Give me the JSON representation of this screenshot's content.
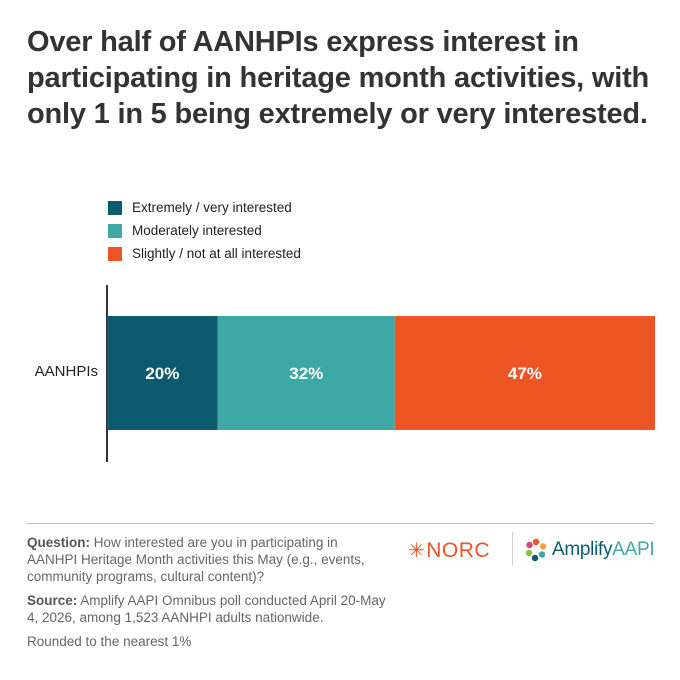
{
  "title": "Over half of AANHPIs express interest in participating in heritage month activities, with only 1 in 5 being extremely or very interested.",
  "legend": [
    {
      "label": "Extremely / very interested",
      "color": "#0b5a6d"
    },
    {
      "label": "Moderately interested",
      "color": "#3ea8a5"
    },
    {
      "label": "Slightly / not at all interested",
      "color": "#ee5524"
    }
  ],
  "chart_data": {
    "type": "bar",
    "orientation": "horizontal-stacked",
    "categories": [
      "AANHPIs"
    ],
    "series": [
      {
        "name": "Extremely / very interested",
        "values": [
          20
        ],
        "label": "20%",
        "color": "#0b5a6d"
      },
      {
        "name": "Moderately interested",
        "values": [
          32
        ],
        "label": "32%",
        "color": "#3ea8a5"
      },
      {
        "name": "Slightly / not at all interested",
        "values": [
          47
        ],
        "label": "47%",
        "color": "#ee5524"
      }
    ],
    "title": "Over half of AANHPIs express interest in participating in heritage month activities, with only 1 in 5 being extremely or very interested.",
    "xlabel": "",
    "ylabel": "",
    "grid": false,
    "legend_position": "top-left"
  },
  "footer": {
    "question_label": "Question:",
    "question_text": "How interested are you in participating in AANHPI Heritage Month activities this May (e.g., events, community programs, cultural content)?",
    "source_label": "Source:",
    "source_text": "Amplify AAPI Omnibus poll conducted April 20-May 4, 2026, among 1,523 AANHPI adults nationwide.",
    "note": "Rounded to the nearest 1%"
  },
  "logos": {
    "norc": "NORC",
    "amplify_a": "Amplify",
    "amplify_b": "AAPI"
  }
}
